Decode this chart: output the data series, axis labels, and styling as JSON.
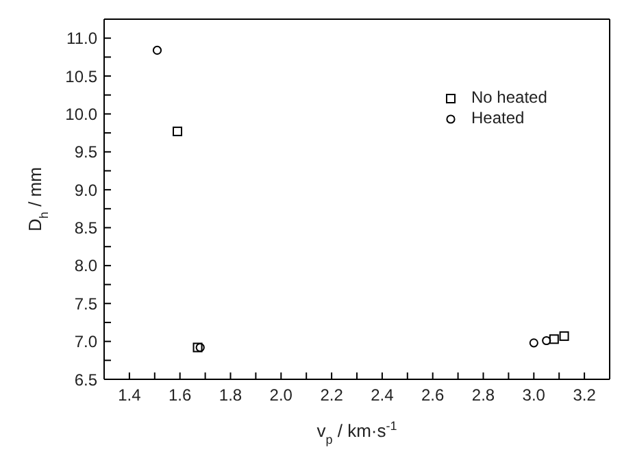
{
  "chart_data": {
    "type": "scatter",
    "xlabel": "v$_{p}$ / km·s$^{-1}$",
    "ylabel": "D$_{h}$ / mm",
    "xlim": [
      1.3,
      3.3
    ],
    "xticks": [
      {
        "value": 1.3,
        "label": null
      },
      {
        "value": 1.4,
        "label": "1.4"
      },
      {
        "value": 1.5,
        "label": null
      },
      {
        "value": 1.6,
        "label": "1.6"
      },
      {
        "value": 1.7,
        "label": null
      },
      {
        "value": 1.8,
        "label": "1.8"
      },
      {
        "value": 1.9,
        "label": null
      },
      {
        "value": 2.0,
        "label": "2.0"
      },
      {
        "value": 2.1,
        "label": null
      },
      {
        "value": 2.2,
        "label": "2.2"
      },
      {
        "value": 2.3,
        "label": null
      },
      {
        "value": 2.4,
        "label": "2.4"
      },
      {
        "value": 2.5,
        "label": null
      },
      {
        "value": 2.6,
        "label": "2.6"
      },
      {
        "value": 2.7,
        "label": null
      },
      {
        "value": 2.8,
        "label": "2.8"
      },
      {
        "value": 2.9,
        "label": null
      },
      {
        "value": 3.0,
        "label": "3.0"
      },
      {
        "value": 3.1,
        "label": null
      },
      {
        "value": 3.2,
        "label": "3.2"
      }
    ],
    "ylim": [
      6.5,
      11.25
    ],
    "yticks": [
      {
        "value": 6.5,
        "label": "6.5"
      },
      {
        "value": 6.75,
        "label": null
      },
      {
        "value": 7,
        "label": "7.0"
      },
      {
        "value": 7.25,
        "label": null
      },
      {
        "value": 7.5,
        "label": "7.5"
      },
      {
        "value": 7.75,
        "label": null
      },
      {
        "value": 8,
        "label": "8.0"
      },
      {
        "value": 8.25,
        "label": null
      },
      {
        "value": 8.5,
        "label": "8.5"
      },
      {
        "value": 8.75,
        "label": null
      },
      {
        "value": 9,
        "label": "9.0"
      },
      {
        "value": 9.25,
        "label": null
      },
      {
        "value": 9.5,
        "label": "9.5"
      },
      {
        "value": 9.75,
        "label": null
      },
      {
        "value": 10,
        "label": "10.0"
      },
      {
        "value": 10.25,
        "label": null
      },
      {
        "value": 10.5,
        "label": "10.5"
      },
      {
        "value": 10.75,
        "label": null
      },
      {
        "value": 11,
        "label": "11.0"
      }
    ],
    "grid": false,
    "legend": "top right",
    "series": [
      {
        "name": "No heated",
        "color": "#000000",
        "marker": "square",
        "x": [
          1.59,
          1.67,
          3.08,
          3.12
        ],
        "values": [
          9.77,
          6.92,
          7.03,
          7.07
        ]
      },
      {
        "name": "Heated",
        "color": "#000000",
        "marker": "circle",
        "x": [
          1.51,
          1.68,
          3.0,
          3.05
        ],
        "values": [
          10.84,
          6.92,
          6.98,
          7.01
        ]
      }
    ]
  }
}
